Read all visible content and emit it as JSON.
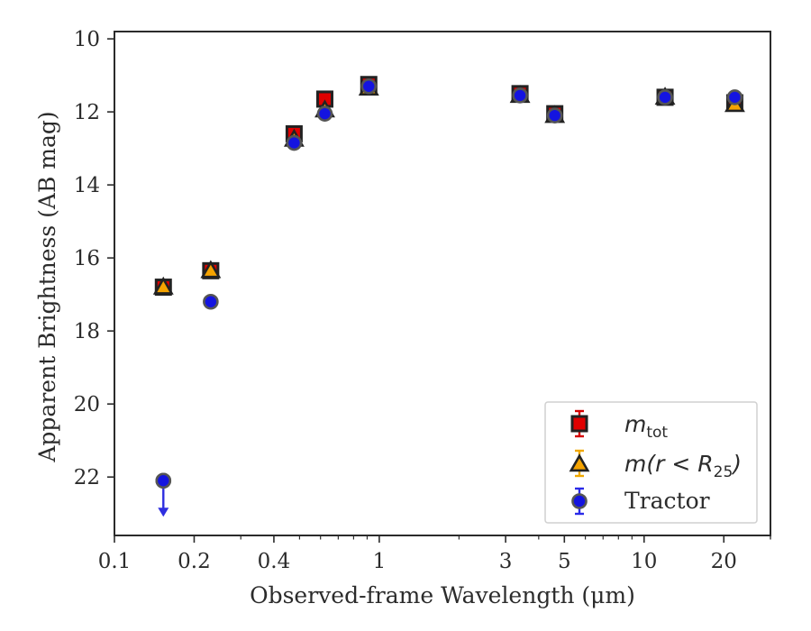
{
  "chart_data": {
    "type": "scatter",
    "xlabel": "Observed-frame Wavelength (μm)",
    "ylabel": "Apparent Brightness (AB mag)",
    "xscale": "log",
    "xlim": [
      0.1,
      30
    ],
    "ylim": [
      23.6,
      9.8
    ],
    "y_inverted": true,
    "x_tick_values": [
      0.1,
      0.2,
      0.4,
      1,
      3,
      5,
      10,
      20
    ],
    "x_tick_labels": [
      "0.1",
      "0.2",
      "0.4",
      "1",
      "3",
      "5",
      "10",
      "20"
    ],
    "y_ticks": [
      10,
      12,
      14,
      16,
      18,
      20,
      22
    ],
    "y_tick_labels": [
      "10",
      "12",
      "14",
      "16",
      "18",
      "20",
      "22"
    ],
    "grid": false,
    "legend_position": "lower-right",
    "series": [
      {
        "name": "m_tot",
        "legend_main": "m",
        "legend_sub": "tot",
        "marker": "square",
        "color": "#e00000",
        "error_color": "#d40000",
        "x": [
          0.153,
          0.231,
          0.477,
          0.623,
          0.913,
          3.4,
          4.6,
          12.0,
          22.0
        ],
        "y": [
          16.8,
          16.35,
          12.6,
          11.65,
          11.25,
          11.5,
          12.05,
          11.6,
          11.75
        ],
        "upper_limit": [
          false,
          false,
          false,
          false,
          false,
          false,
          false,
          false,
          false
        ]
      },
      {
        "name": "m(r<R_25)",
        "legend_parts": [
          "m",
          "(",
          "r",
          " < ",
          "R",
          "25",
          ")"
        ],
        "marker": "triangle",
        "color": "#f5a300",
        "error_color": "#f0a800",
        "x": [
          0.153,
          0.231,
          0.477,
          0.623,
          0.913,
          3.4,
          4.6,
          12.0,
          22.0
        ],
        "y": [
          16.8,
          16.35,
          12.75,
          11.95,
          11.35,
          11.55,
          12.1,
          11.6,
          11.8
        ],
        "upper_limit": [
          false,
          false,
          false,
          false,
          false,
          false,
          false,
          false,
          false
        ]
      },
      {
        "name": "Tractor",
        "marker": "circle",
        "color": "#1414e0",
        "error_color": "#2a2ae8",
        "x": [
          0.153,
          0.231,
          0.477,
          0.623,
          0.913,
          3.4,
          4.6,
          12.0,
          22.0
        ],
        "y": [
          22.1,
          17.2,
          12.85,
          12.05,
          11.3,
          11.55,
          12.1,
          11.6,
          11.6
        ],
        "upper_limit": [
          true,
          false,
          false,
          false,
          false,
          false,
          false,
          false,
          false
        ]
      }
    ]
  }
}
